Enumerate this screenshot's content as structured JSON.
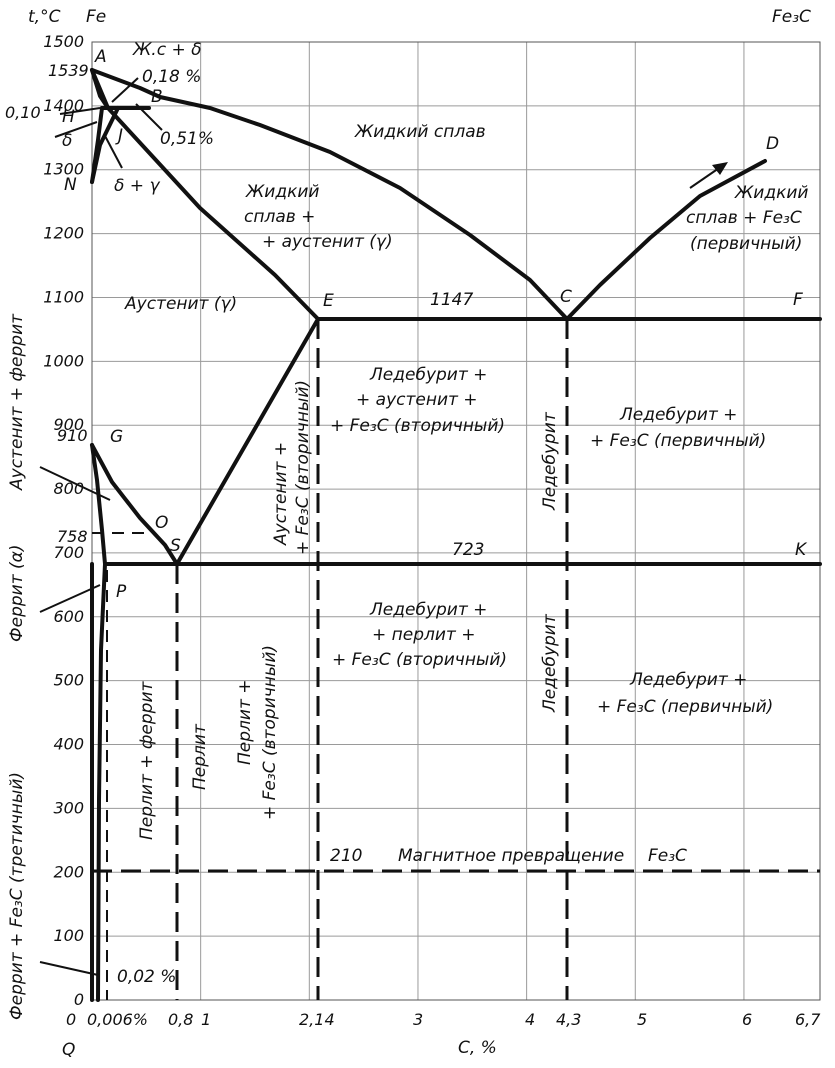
{
  "axes": {
    "y_title": "t,°C",
    "x_title": "C, %",
    "top_left": "Fe",
    "top_right": "Fe₃C",
    "y_ticks": [
      0,
      100,
      200,
      300,
      400,
      500,
      600,
      700,
      800,
      900,
      1000,
      1100,
      1200,
      1300,
      1400,
      1500
    ],
    "y_special_ticks": [
      "1539",
      "910",
      "758"
    ],
    "x_tick_labels": [
      "0",
      "0,006%",
      "0,8",
      "1",
      "2,14",
      "3",
      "4",
      "4,3",
      "5",
      "6",
      "6,7"
    ]
  },
  "points": {
    "A": "A",
    "H": "H",
    "J": "J",
    "B": "B",
    "N": "N",
    "E": "E",
    "C": "C",
    "D": "D",
    "F": "F",
    "G": "G",
    "O": "O",
    "S": "S",
    "P": "P",
    "K": "K",
    "Q": "Q",
    "delta_left": "δ"
  },
  "notes": {
    "c_018": "0,18 %",
    "c_051": "0,51%",
    "c_010": "0,10",
    "c_002": "0,02 %",
    "liq_delta": "Ж.с + δ",
    "delta_gamma": "δ + γ",
    "t_1147": "1147",
    "t_723": "723",
    "t_210": "210",
    "magnetic": "Магнитное превращение",
    "magnetic_fe3c": "Fe₃C"
  },
  "regions": {
    "liquid": "Жидкий сплав",
    "liq_aust_1": "Жидкий",
    "liq_aust_2": "сплав +",
    "liq_aust_3": "+ аустенит (γ)",
    "liq_cem_1": "Жидкий",
    "liq_cem_2": "сплав + Fe₃C",
    "liq_cem_3": "(первичный)",
    "austenite": "Аустенит (γ)",
    "led_aust_1": "Ледебурит +",
    "led_aust_2": "+ аустенит +",
    "led_aust_3": "+ Fe₃C (вторичный)",
    "aust_cem_1": "Аустенит +",
    "aust_cem_2": "+ Fe₃C (вторичный)",
    "ledeburite_upper": "Ледебурит",
    "led_cem1_1": "Ледебурит +",
    "led_cem1_2": "+ Fe₃C (первичный)",
    "aust_ferrite_left": "Аустенит + феррит",
    "ferrite_left": "Феррит (α)",
    "led_perl_1": "Ледебурит +",
    "led_perl_2": "+ перлит +",
    "led_perl_3": "+ Fe₃C (вторичный)",
    "ledeburite_lower": "Ледебурит",
    "led_cem2_1": "Ледебурит +",
    "led_cem2_2": "+ Fe₃C (первичный)",
    "perlite_ferrite": "Перлит + феррит",
    "perlite": "Перлит",
    "perl_cem_1": "Перлит +",
    "perl_cem_2": "+ Fe₃C (вторичный)",
    "ferrite_tert": "Феррит + Fe₃C (третичный)"
  }
}
